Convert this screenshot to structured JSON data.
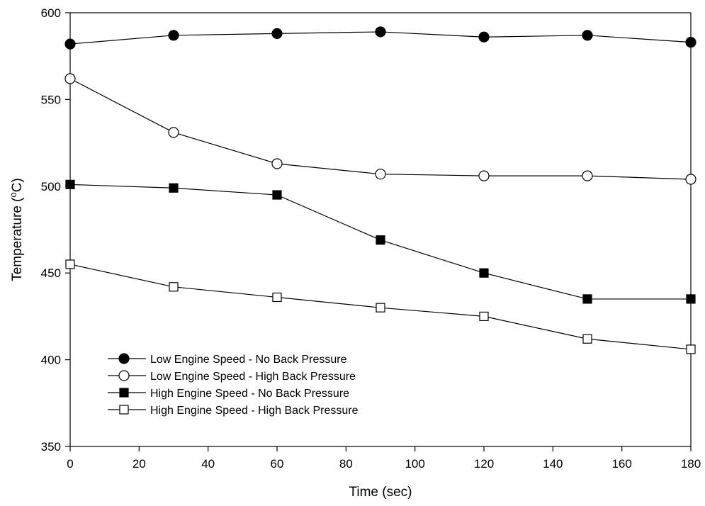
{
  "chart_data": {
    "type": "line",
    "title": "",
    "xlabel": "Time (sec)",
    "ylabel_main": "Temperature (",
    "ylabel_sup": "o",
    "ylabel_end": "C)",
    "xlim": [
      0,
      180
    ],
    "ylim": [
      350,
      600
    ],
    "x_ticks": [
      0,
      20,
      40,
      60,
      80,
      100,
      120,
      140,
      160,
      180
    ],
    "y_ticks": [
      350,
      400,
      450,
      500,
      550,
      600
    ],
    "grid": false,
    "legend_position": "bottom-left",
    "x": [
      0,
      30,
      60,
      90,
      120,
      150,
      180
    ],
    "series": [
      {
        "name": "Low Engine Speed - No Back Pressure",
        "marker": "circle",
        "fill": "#000000",
        "values": [
          582,
          587,
          588,
          589,
          586,
          587,
          583
        ]
      },
      {
        "name": "Low Engine Speed - High Back Pressure",
        "marker": "circle",
        "fill": "#ffffff",
        "values": [
          562,
          531,
          513,
          507,
          506,
          506,
          504
        ]
      },
      {
        "name": "High Engine Speed - No Back Pressure",
        "marker": "square",
        "fill": "#000000",
        "values": [
          501,
          499,
          495,
          469,
          450,
          435,
          435
        ]
      },
      {
        "name": "High Engine Speed - High Back Pressure",
        "marker": "square",
        "fill": "#ffffff",
        "values": [
          455,
          442,
          436,
          430,
          425,
          412,
          406
        ]
      }
    ]
  }
}
